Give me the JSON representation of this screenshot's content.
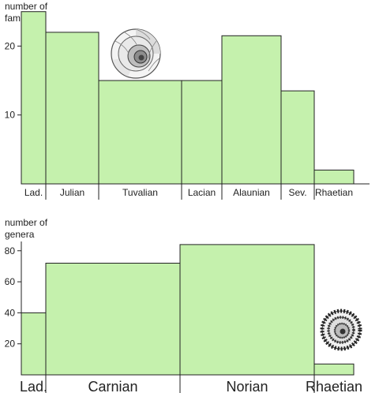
{
  "colors": {
    "bar_fill": "#c5f1ad",
    "axis": "#222222"
  },
  "images": {
    "top_shell": "ammonite-shell-smooth",
    "bottom_shell": "ammonite-shell-ribbed"
  },
  "chart_data": [
    {
      "type": "bar",
      "ylabel_lines": [
        "number of",
        "families"
      ],
      "ylim": [
        0,
        26
      ],
      "yticks": [
        10,
        20
      ],
      "stages": [
        "Lad.",
        "Julian",
        "Tuvalian",
        "Lacian",
        "Alaunian",
        "Sev.",
        "Rhaetian"
      ],
      "values": [
        25,
        22,
        15,
        15,
        21.5,
        13.5,
        2
      ]
    },
    {
      "type": "bar",
      "ylabel_lines": [
        "number of",
        "genera"
      ],
      "ylim": [
        0,
        87
      ],
      "yticks": [
        20,
        40,
        60,
        80
      ],
      "stages": [
        "Lad.",
        "Carnian",
        "Norian",
        "Rhaetian"
      ],
      "values": [
        40,
        72,
        84,
        7
      ]
    }
  ]
}
